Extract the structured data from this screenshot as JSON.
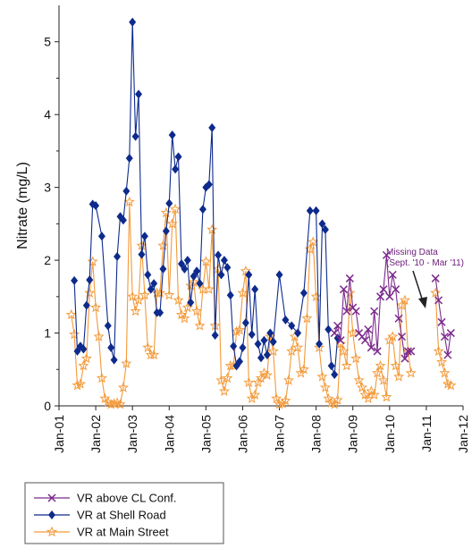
{
  "chart_data": {
    "type": "line",
    "title": "",
    "xlabel": "",
    "ylabel": "Nitrate (mg/L)",
    "x_ticks": [
      "Jan-01",
      "Jan-02",
      "Jan-03",
      "Jan-04",
      "Jan-05",
      "Jan-06",
      "Jan-07",
      "Jan-08",
      "Jan-09",
      "Jan-10",
      "Jan-11",
      "Jan-12"
    ],
    "xlim": [
      "2001-01",
      "2012-01"
    ],
    "ylim": [
      0,
      5.5
    ],
    "y_ticks": [
      0,
      1,
      2,
      3,
      4,
      5
    ],
    "grid": false,
    "legend_position": "bottom-left (below plot)",
    "annotation": {
      "line1": "Missing Data",
      "line2": "(Sept. '10 - Mar '11)",
      "at": "Nov-10"
    },
    "series": [
      {
        "name": "VR above CL Conf.",
        "color": "#7b2a8c",
        "marker": "x",
        "x": [
          "2008-07",
          "2008-08",
          "2008-09",
          "2008-10",
          "2008-11",
          "2008-12",
          "2009-01",
          "2009-02",
          "2009-03",
          "2009-04",
          "2009-05",
          "2009-06",
          "2009-07",
          "2009-08",
          "2009-09",
          "2009-10",
          "2009-11",
          "2009-12",
          "2010-01",
          "2010-02",
          "2010-03",
          "2010-04",
          "2010-05",
          "2010-06",
          "2010-07",
          "2010-08",
          "2011-04",
          "2011-05",
          "2011-06",
          "2011-07",
          "2011-08",
          "2011-09"
        ],
        "y": [
          1.0,
          1.1,
          0.9,
          1.6,
          1.3,
          1.75,
          1.35,
          1.3,
          1.0,
          0.95,
          0.9,
          1.05,
          0.8,
          1.3,
          0.75,
          1.5,
          1.6,
          2.07,
          1.5,
          1.8,
          1.6,
          1.2,
          0.95,
          0.65,
          0.75,
          0.75,
          1.75,
          1.45,
          1.15,
          0.95,
          0.7,
          1.0
        ]
      },
      {
        "name": "VR at Shell Road",
        "color": "#0d2a8c",
        "marker": "diamond",
        "x": [
          "2001-06",
          "2001-07",
          "2001-08",
          "2001-09",
          "2001-10",
          "2001-11",
          "2001-12",
          "2002-01",
          "2002-03",
          "2002-05",
          "2002-06",
          "2002-07",
          "2002-08",
          "2002-09",
          "2002-10",
          "2002-11",
          "2002-12",
          "2003-01",
          "2003-02",
          "2003-03",
          "2003-04",
          "2003-05",
          "2003-06",
          "2003-07",
          "2003-08",
          "2003-09",
          "2003-10",
          "2003-11",
          "2003-12",
          "2004-01",
          "2004-02",
          "2004-03",
          "2004-04",
          "2004-05",
          "2004-06",
          "2004-07",
          "2004-08",
          "2004-09",
          "2004-10",
          "2004-11",
          "2004-12",
          "2005-01",
          "2005-02",
          "2005-03",
          "2005-04",
          "2005-05",
          "2005-06",
          "2005-07",
          "2005-08",
          "2005-09",
          "2005-10",
          "2005-11",
          "2005-12",
          "2006-01",
          "2006-02",
          "2006-03",
          "2006-04",
          "2006-05",
          "2006-06",
          "2006-07",
          "2006-08",
          "2006-09",
          "2006-10",
          "2006-11",
          "2007-01",
          "2007-03",
          "2007-05",
          "2007-07",
          "2007-09",
          "2007-11",
          "2008-01",
          "2008-02",
          "2008-03",
          "2008-04",
          "2008-05",
          "2008-06",
          "2008-07",
          "2008-08"
        ],
        "y": [
          1.72,
          0.75,
          0.82,
          0.78,
          1.38,
          1.73,
          2.77,
          2.75,
          2.33,
          1.1,
          0.8,
          0.63,
          2.05,
          2.6,
          2.55,
          2.95,
          3.4,
          5.27,
          3.7,
          4.28,
          2.08,
          2.33,
          1.8,
          1.6,
          1.68,
          1.28,
          1.28,
          1.88,
          2.4,
          2.78,
          3.72,
          3.25,
          3.42,
          1.95,
          1.88,
          2.0,
          1.42,
          1.78,
          1.85,
          1.68,
          2.7,
          3.0,
          3.04,
          3.82,
          0.97,
          2.07,
          1.8,
          2.0,
          1.9,
          1.52,
          0.82,
          0.55,
          0.61,
          0.8,
          1.14,
          1.8,
          0.98,
          1.6,
          0.85,
          0.66,
          0.9,
          0.7,
          1.0,
          0.88,
          1.8,
          1.18,
          1.1,
          1.0,
          1.55,
          2.68,
          2.68,
          0.85,
          2.5,
          2.42,
          1.05,
          0.55,
          0.43,
          0.93
        ]
      },
      {
        "name": "VR at Main Street",
        "color": "#f39a3a",
        "marker": "star",
        "x": [
          "2001-05",
          "2001-06",
          "2001-07",
          "2001-08",
          "2001-09",
          "2001-10",
          "2001-11",
          "2001-12",
          "2002-01",
          "2002-02",
          "2002-03",
          "2002-04",
          "2002-05",
          "2002-06",
          "2002-07",
          "2002-08",
          "2002-09",
          "2002-10",
          "2002-11",
          "2002-12",
          "2003-01",
          "2003-02",
          "2003-03",
          "2003-04",
          "2003-05",
          "2003-06",
          "2003-07",
          "2003-08",
          "2003-09",
          "2003-10",
          "2003-11",
          "2003-12",
          "2004-01",
          "2004-02",
          "2004-03",
          "2004-04",
          "2004-05",
          "2004-06",
          "2004-07",
          "2004-08",
          "2004-09",
          "2004-10",
          "2004-11",
          "2004-12",
          "2005-01",
          "2005-02",
          "2005-03",
          "2005-04",
          "2005-05",
          "2005-06",
          "2005-07",
          "2005-08",
          "2005-09",
          "2005-10",
          "2005-11",
          "2005-12",
          "2006-01",
          "2006-02",
          "2006-03",
          "2006-04",
          "2006-05",
          "2006-06",
          "2006-07",
          "2006-08",
          "2006-09",
          "2006-10",
          "2006-11",
          "2006-12",
          "2007-01",
          "2007-02",
          "2007-03",
          "2007-04",
          "2007-05",
          "2007-06",
          "2007-07",
          "2007-08",
          "2007-09",
          "2007-10",
          "2007-11",
          "2007-12",
          "2008-01",
          "2008-02",
          "2008-03",
          "2008-04",
          "2008-05",
          "2008-06",
          "2008-07",
          "2008-08",
          "2008-09",
          "2008-10",
          "2008-11",
          "2008-12",
          "2009-01",
          "2009-02",
          "2009-03",
          "2009-04",
          "2009-05",
          "2009-06",
          "2009-07",
          "2009-08",
          "2009-09",
          "2009-10",
          "2009-11",
          "2009-12",
          "2010-01",
          "2010-02",
          "2010-03",
          "2010-04",
          "2010-05",
          "2010-06",
          "2010-07",
          "2010-08",
          "2011-04",
          "2011-05",
          "2011-06",
          "2011-07",
          "2011-08",
          "2011-09"
        ],
        "y": [
          1.25,
          0.98,
          0.28,
          0.3,
          0.55,
          0.65,
          1.55,
          1.98,
          1.35,
          0.95,
          0.38,
          0.1,
          0.05,
          0.02,
          0.03,
          0.04,
          0.02,
          0.25,
          0.58,
          2.8,
          1.5,
          1.3,
          1.45,
          2.2,
          1.52,
          0.8,
          0.7,
          0.7,
          1.55,
          1.55,
          2.2,
          2.65,
          1.52,
          2.5,
          2.7,
          1.45,
          1.25,
          1.2,
          1.35,
          1.65,
          1.7,
          1.3,
          1.1,
          1.6,
          1.98,
          1.6,
          2.42,
          1.1,
          1.88,
          0.35,
          0.2,
          0.38,
          0.55,
          0.55,
          1.02,
          1.04,
          1.55,
          1.85,
          0.32,
          0.1,
          0.15,
          0.32,
          0.38,
          0.45,
          0.42,
          0.95,
          0.75,
          0.1,
          0.02,
          0.03,
          0.07,
          0.35,
          0.75,
          0.95,
          0.8,
          0.45,
          0.5,
          1.2,
          2.15,
          2.25,
          1.5,
          0.8,
          0.4,
          0.25,
          0.1,
          0.04,
          0.02,
          0.08,
          0.85,
          0.75,
          0.55,
          1.55,
          1.0,
          0.65,
          0.35,
          0.25,
          0.15,
          0.1,
          0.2,
          0.15,
          0.45,
          0.55,
          0.35,
          0.12,
          0.9,
          0.95,
          0.55,
          0.4,
          1.38,
          1.45,
          0.75,
          0.45,
          1.55,
          0.75,
          0.6,
          0.45,
          0.3,
          0.28
        ]
      }
    ]
  }
}
